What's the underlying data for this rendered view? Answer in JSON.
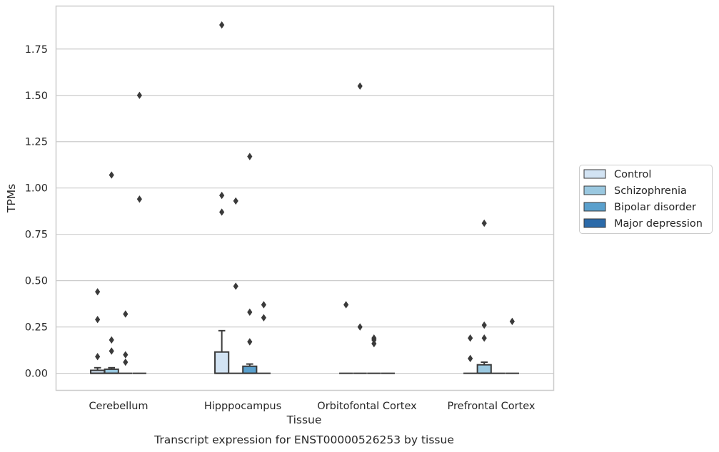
{
  "chart_data": {
    "type": "boxplot",
    "xlabel": "Tissue",
    "ylabel": "TPMs",
    "caption": "Transcript expression for ENST00000526253 by tissue",
    "ylim": [
      -0.09,
      1.98
    ],
    "yticks": [
      0.0,
      0.25,
      0.5,
      0.75,
      1.0,
      1.25,
      1.5,
      1.75
    ],
    "ytick_labels": [
      "0.00",
      "0.25",
      "0.50",
      "0.75",
      "1.00",
      "1.25",
      "1.50",
      "1.75"
    ],
    "grid": "horizontal",
    "legend_placement": "right",
    "categories": [
      "Cerebellum",
      "Hipppocampus",
      "Orbitofontal Cortex",
      "Prefrontal Cortex"
    ],
    "series": [
      {
        "name": "Control",
        "color": "#d2e3f3",
        "boxes": [
          {
            "q1": 0.0,
            "median": 0.0,
            "q3": 0.016,
            "whisker_low": 0.0,
            "whisker_high": 0.03,
            "outliers": [
              0.09,
              0.29,
              0.44
            ]
          },
          {
            "q1": 0.0,
            "median": 0.0,
            "q3": 0.115,
            "whisker_low": 0.0,
            "whisker_high": 0.23,
            "outliers": [
              0.87,
              0.96,
              1.88
            ]
          },
          {
            "q1": 0.0,
            "median": 0.0,
            "q3": 0.0,
            "whisker_low": 0.0,
            "whisker_high": 0.0,
            "outliers": [
              0.37
            ]
          },
          {
            "q1": 0.0,
            "median": 0.0,
            "q3": 0.0,
            "whisker_low": 0.0,
            "whisker_high": 0.0,
            "outliers": [
              0.08,
              0.19
            ]
          }
        ]
      },
      {
        "name": "Schizophrenia",
        "color": "#9ac8e0",
        "boxes": [
          {
            "q1": 0.0,
            "median": 0.0,
            "q3": 0.022,
            "whisker_low": 0.0,
            "whisker_high": 0.03,
            "outliers": [
              0.12,
              0.18,
              1.07
            ]
          },
          {
            "q1": 0.0,
            "median": 0.0,
            "q3": 0.0,
            "whisker_low": 0.0,
            "whisker_high": 0.0,
            "outliers": [
              0.47,
              0.93
            ]
          },
          {
            "q1": 0.0,
            "median": 0.0,
            "q3": 0.0,
            "whisker_low": 0.0,
            "whisker_high": 0.0,
            "outliers": [
              0.25,
              1.55
            ]
          },
          {
            "q1": 0.0,
            "median": 0.0,
            "q3": 0.046,
            "whisker_low": 0.0,
            "whisker_high": 0.06,
            "outliers": [
              0.19,
              0.26,
              0.81
            ]
          }
        ]
      },
      {
        "name": "Bipolar disorder",
        "color": "#5aa0cd",
        "boxes": [
          {
            "q1": 0.0,
            "median": 0.0,
            "q3": 0.0,
            "whisker_low": 0.0,
            "whisker_high": 0.0,
            "outliers": [
              0.06,
              0.1,
              0.32
            ]
          },
          {
            "q1": 0.0,
            "median": 0.0,
            "q3": 0.038,
            "whisker_low": 0.0,
            "whisker_high": 0.05,
            "outliers": [
              0.17,
              0.33,
              1.17
            ]
          },
          {
            "q1": 0.0,
            "median": 0.0,
            "q3": 0.0,
            "whisker_low": 0.0,
            "whisker_high": 0.0,
            "outliers": [
              0.16,
              0.18,
              0.19
            ]
          },
          {
            "q1": 0.0,
            "median": 0.0,
            "q3": 0.0,
            "whisker_low": 0.0,
            "whisker_high": 0.0,
            "outliers": []
          }
        ]
      },
      {
        "name": "Major depression",
        "color": "#2b6aa9",
        "boxes": [
          {
            "q1": 0.0,
            "median": 0.0,
            "q3": 0.0,
            "whisker_low": 0.0,
            "whisker_high": 0.0,
            "outliers": [
              0.94,
              1.5
            ]
          },
          {
            "q1": 0.0,
            "median": 0.0,
            "q3": 0.0,
            "whisker_low": 0.0,
            "whisker_high": 0.0,
            "outliers": [
              0.3,
              0.37
            ]
          },
          {
            "q1": 0.0,
            "median": 0.0,
            "q3": 0.0,
            "whisker_low": 0.0,
            "whisker_high": 0.0,
            "outliers": []
          },
          {
            "q1": 0.0,
            "median": 0.0,
            "q3": 0.0,
            "whisker_low": 0.0,
            "whisker_high": 0.0,
            "outliers": [
              0.28
            ]
          }
        ]
      }
    ]
  }
}
